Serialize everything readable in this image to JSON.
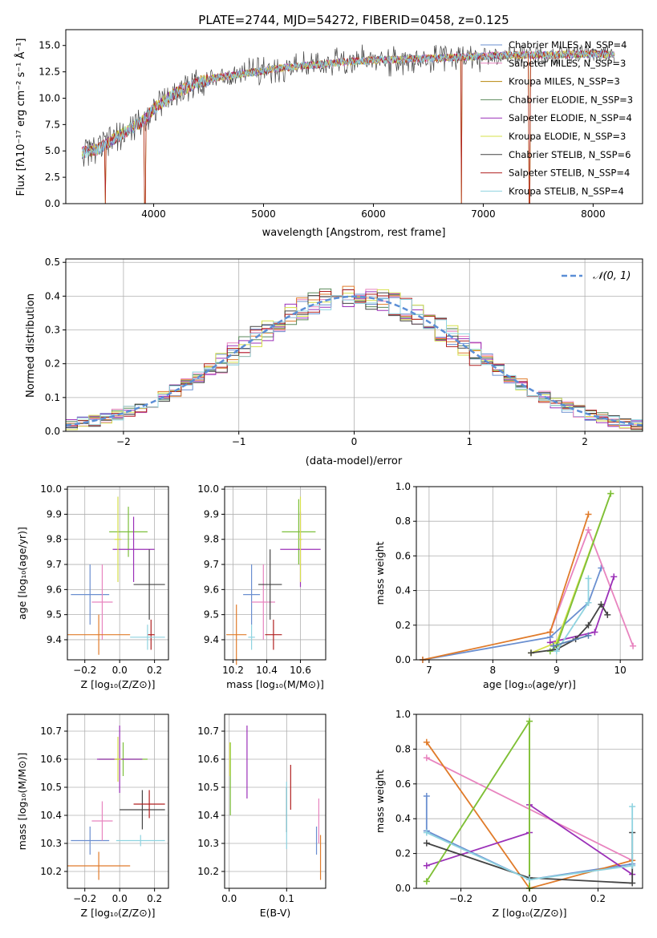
{
  "chart_data": [
    {
      "type": "line",
      "title": "PLATE=2744, MJD=54272, FIBERID=0458, z=0.125",
      "xlabel": "wavelength [Angstrom, rest frame]",
      "ylabel": "Flux [fλ10⁻¹⁷ erg cm⁻² s⁻¹ Å⁻¹]",
      "xlim": [
        3200,
        8450
      ],
      "ylim": [
        0,
        16.5
      ],
      "xticks": [
        4000,
        5000,
        6000,
        7000,
        8000
      ],
      "yticks": [
        0.0,
        2.5,
        5.0,
        7.5,
        10.0,
        12.5,
        15.0
      ],
      "grid": false,
      "legend_position": "top-right",
      "legend": [
        {
          "label": "Chabrier MILES, N_SSP=4",
          "color": "#6a8fd0"
        },
        {
          "label": "Salpeter MILES, N_SSP=3",
          "color": "#e884bf"
        },
        {
          "label": "Kroupa MILES, N_SSP=3",
          "color": "#b8860b"
        },
        {
          "label": "Chabrier ELODIE, N_SSP=3",
          "color": "#5a8a5a"
        },
        {
          "label": "Salpeter ELODIE, N_SSP=4",
          "color": "#9b30b8"
        },
        {
          "label": "Kroupa ELODIE, N_SSP=3",
          "color": "#d6e04a"
        },
        {
          "label": "Chabrier STELIB, N_SSP=6",
          "color": "#444444"
        },
        {
          "label": "Salpeter STELIB, N_SSP=4",
          "color": "#b02020"
        },
        {
          "label": "Kroupa STELIB, N_SSP=4",
          "color": "#8fd3e0"
        }
      ],
      "continuum": {
        "x": [
          3350,
          3500,
          3700,
          3900,
          4000,
          4200,
          4400,
          4600,
          4800,
          5000,
          5200,
          5500,
          5800,
          6000,
          6300,
          6600,
          7000,
          7300,
          7600,
          8000,
          8200
        ],
        "y": [
          4.8,
          5.2,
          6.5,
          7.8,
          9.0,
          10.5,
          11.5,
          12.0,
          12.3,
          12.6,
          12.9,
          13.2,
          13.5,
          13.6,
          13.7,
          13.8,
          14.0,
          14.1,
          14.1,
          14.2,
          14.1
        ]
      },
      "dips": [
        {
          "x": 3560,
          "y": 0.0
        },
        {
          "x": 3920,
          "y": 0.0
        },
        {
          "x": 6800,
          "y": 0.0
        },
        {
          "x": 7420,
          "y": 0.0
        }
      ]
    },
    {
      "type": "step",
      "xlabel": "(data-model)/error",
      "ylabel": "Normed distribution",
      "xlim": [
        -2.5,
        2.5
      ],
      "ylim": [
        0,
        0.51
      ],
      "xticks": [
        -2,
        -1,
        0,
        1,
        2
      ],
      "yticks": [
        0.0,
        0.1,
        0.2,
        0.3,
        0.4,
        0.5
      ],
      "grid": true,
      "legend_position": "top-right",
      "reference_curve": {
        "label": "𝒩(0, 1)",
        "mean": 0,
        "sigma": 1,
        "color": "#5b8ed6"
      },
      "bin_width": 0.1,
      "series_colors": [
        "#6a8fd0",
        "#e884bf",
        "#e07b2a",
        "#5a8a5a",
        "#9b30b8",
        "#d6e04a",
        "#444444",
        "#b02020",
        "#8fd3e0"
      ]
    },
    {
      "type": "errorbar",
      "xlabel": "Z [log₁₀(Z/Z⊙)]",
      "ylabel": "age  [log₁₀(age/yr)]",
      "xlim": [
        -0.3,
        0.28
      ],
      "ylim": [
        9.32,
        10.01
      ],
      "xticks": [
        "−0.2",
        "0.0",
        "0.2"
      ],
      "yticks": [
        "9.4",
        "9.5",
        "9.6",
        "9.7",
        "9.8",
        "9.9",
        "10.0"
      ],
      "grid": true,
      "points": [
        {
          "x": -0.17,
          "y": 9.58,
          "xerr": 0.11,
          "yerr": 0.12,
          "color": "#6a8fd0"
        },
        {
          "x": -0.1,
          "y": 9.55,
          "xerr": 0.06,
          "yerr": 0.15,
          "color": "#e884bf"
        },
        {
          "x": -0.12,
          "y": 9.42,
          "xerr": 0.18,
          "yerr": 0.08,
          "color": "#e07b2a"
        },
        {
          "x": 0.05,
          "y": 9.83,
          "xerr": 0.11,
          "yerr": 0.1,
          "color": "#7cbf3a"
        },
        {
          "x": 0.08,
          "y": 9.76,
          "xerr": 0.12,
          "yerr": 0.13,
          "color": "#9b30b8"
        },
        {
          "x": -0.01,
          "y": 9.8,
          "xerr": 0.02,
          "yerr": 0.17,
          "color": "#d6e04a"
        },
        {
          "x": 0.17,
          "y": 9.62,
          "xerr": 0.09,
          "yerr": 0.14,
          "color": "#444444"
        },
        {
          "x": 0.18,
          "y": 9.42,
          "xerr": 0.02,
          "yerr": 0.06,
          "color": "#b02020"
        },
        {
          "x": 0.16,
          "y": 9.41,
          "xerr": 0.1,
          "yerr": 0.05,
          "color": "#8fd3e0"
        }
      ]
    },
    {
      "type": "errorbar",
      "xlabel": "mass [log₁₀(M/M⊙)]",
      "ylabel": "",
      "xlim": [
        10.15,
        10.75
      ],
      "ylim": [
        9.32,
        10.01
      ],
      "xticks": [
        "10.2",
        "10.4",
        "10.6"
      ],
      "yticks": [
        "9.4",
        "9.5",
        "9.6",
        "9.7",
        "9.8",
        "9.9",
        "10.0"
      ],
      "grid": true,
      "points": [
        {
          "x": 10.31,
          "y": 9.58,
          "xerr": 0.05,
          "yerr": 0.12,
          "color": "#6a8fd0"
        },
        {
          "x": 10.38,
          "y": 9.55,
          "xerr": 0.07,
          "yerr": 0.15,
          "color": "#e884bf"
        },
        {
          "x": 10.22,
          "y": 9.42,
          "xerr": 0.06,
          "yerr": 0.12,
          "color": "#e07b2a"
        },
        {
          "x": 10.59,
          "y": 9.83,
          "xerr": 0.1,
          "yerr": 0.13,
          "color": "#7cbf3a"
        },
        {
          "x": 10.6,
          "y": 9.76,
          "xerr": 0.12,
          "yerr": 0.15,
          "color": "#9b30b8"
        },
        {
          "x": 10.6,
          "y": 9.8,
          "xerr": 0.01,
          "yerr": 0.17,
          "color": "#d6e04a"
        },
        {
          "x": 10.42,
          "y": 9.62,
          "xerr": 0.07,
          "yerr": 0.14,
          "color": "#444444"
        },
        {
          "x": 10.44,
          "y": 9.42,
          "xerr": 0.05,
          "yerr": 0.06,
          "color": "#b02020"
        },
        {
          "x": 10.31,
          "y": 9.41,
          "xerr": 0.02,
          "yerr": 0.05,
          "color": "#8fd3e0"
        }
      ]
    },
    {
      "type": "line",
      "xlabel": "age  [log₁₀(age/yr)]",
      "ylabel": "mass weight",
      "xlim": [
        6.8,
        10.35
      ],
      "ylim": [
        0,
        1.0
      ],
      "xticks": [
        7,
        8,
        9,
        10
      ],
      "yticks": [
        0.0,
        0.2,
        0.4,
        0.6,
        0.8,
        1.0
      ],
      "grid": true,
      "series": [
        {
          "color": "#6a8fd0",
          "x": [
            6.9,
            8.9,
            9.5,
            9.7
          ],
          "y": [
            0.0,
            0.13,
            0.33,
            0.53
          ]
        },
        {
          "color": "#e884bf",
          "x": [
            8.9,
            9.5,
            10.2
          ],
          "y": [
            0.16,
            0.75,
            0.08
          ]
        },
        {
          "color": "#e07b2a",
          "x": [
            6.9,
            8.9,
            9.5
          ],
          "y": [
            0.0,
            0.16,
            0.84
          ]
        },
        {
          "color": "#9b30b8",
          "x": [
            8.9,
            9.6,
            9.9
          ],
          "y": [
            0.1,
            0.16,
            0.48
          ]
        },
        {
          "color": "#d6e04a",
          "x": [
            8.6,
            9.0,
            9.85
          ],
          "y": [
            0.04,
            0.1,
            0.96
          ]
        },
        {
          "color": "#7cbf3a",
          "x": [
            8.9,
            9.0,
            9.85
          ],
          "y": [
            0.05,
            0.08,
            0.96
          ]
        },
        {
          "color": "#444444",
          "x": [
            8.6,
            9.0,
            9.3,
            9.5,
            9.7,
            9.8
          ],
          "y": [
            0.04,
            0.06,
            0.12,
            0.2,
            0.32,
            0.26
          ]
        },
        {
          "color": "#8fd3e0",
          "x": [
            9.0,
            9.5,
            9.5
          ],
          "y": [
            0.05,
            0.33,
            0.47
          ]
        },
        {
          "color": "#5a7fb0",
          "x": [
            8.95,
            9.5
          ],
          "y": [
            0.08,
            0.14
          ]
        }
      ]
    },
    {
      "type": "errorbar",
      "xlabel": "Z [log₁₀(Z/Z⊙)]",
      "ylabel": "mass [log₁₀(M/M⊙)]",
      "xlim": [
        -0.3,
        0.28
      ],
      "ylim": [
        10.14,
        10.76
      ],
      "xticks": [
        "−0.2",
        "0.0",
        "0.2"
      ],
      "yticks": [
        "10.2",
        "10.3",
        "10.4",
        "10.5",
        "10.6",
        "10.7"
      ],
      "grid": true,
      "points": [
        {
          "x": -0.17,
          "y": 10.31,
          "xerr": 0.11,
          "yerr": 0.05,
          "color": "#6a8fd0"
        },
        {
          "x": -0.1,
          "y": 10.38,
          "xerr": 0.06,
          "yerr": 0.07,
          "color": "#e884bf"
        },
        {
          "x": -0.12,
          "y": 10.22,
          "xerr": 0.18,
          "yerr": 0.05,
          "color": "#e07b2a"
        },
        {
          "x": 0.02,
          "y": 10.6,
          "xerr": 0.14,
          "yerr": 0.06,
          "color": "#7cbf3a"
        },
        {
          "x": 0.0,
          "y": 10.6,
          "xerr": 0.13,
          "yerr": 0.12,
          "color": "#9b30b8"
        },
        {
          "x": -0.01,
          "y": 10.6,
          "xerr": 0.02,
          "yerr": 0.08,
          "color": "#d6e04a"
        },
        {
          "x": 0.13,
          "y": 10.42,
          "xerr": 0.13,
          "yerr": 0.07,
          "color": "#444444"
        },
        {
          "x": 0.17,
          "y": 10.44,
          "xerr": 0.09,
          "yerr": 0.05,
          "color": "#b02020"
        },
        {
          "x": 0.12,
          "y": 10.31,
          "xerr": 0.14,
          "yerr": 0.02,
          "color": "#8fd3e0"
        }
      ]
    },
    {
      "type": "errorbar",
      "xlabel": "E(B-V)",
      "ylabel": "",
      "xlim": [
        -0.008,
        0.168
      ],
      "ylim": [
        10.14,
        10.76
      ],
      "xticks": [
        "0.0",
        "0.1"
      ],
      "yticks": [
        "10.2",
        "10.3",
        "10.4",
        "10.5",
        "10.6",
        "10.7"
      ],
      "grid": true,
      "points": [
        {
          "x": 0.152,
          "y": 10.31,
          "xerr": 0,
          "yerr": 0.05,
          "color": "#6a8fd0"
        },
        {
          "x": 0.156,
          "y": 10.38,
          "xerr": 0,
          "yerr": 0.08,
          "color": "#e884bf"
        },
        {
          "x": 0.159,
          "y": 10.25,
          "xerr": 0,
          "yerr": 0.08,
          "color": "#e07b2a"
        },
        {
          "x": 0.002,
          "y": 10.53,
          "xerr": 0,
          "yerr": 0.13,
          "color": "#7cbf3a"
        },
        {
          "x": 0.031,
          "y": 10.59,
          "xerr": 0,
          "yerr": 0.13,
          "color": "#9b30b8"
        },
        {
          "x": 0.001,
          "y": 10.6,
          "xerr": 0,
          "yerr": 0.06,
          "color": "#d6e04a"
        },
        {
          "x": 0.1,
          "y": 10.42,
          "xerr": 0,
          "yerr": 0.08,
          "color": "#444444"
        },
        {
          "x": 0.107,
          "y": 10.5,
          "xerr": 0,
          "yerr": 0.08,
          "color": "#b02020"
        },
        {
          "x": 0.1,
          "y": 10.4,
          "xerr": 0,
          "yerr": 0.12,
          "color": "#8fd3e0"
        }
      ]
    },
    {
      "type": "line",
      "xlabel": "Z [log₁₀(Z/Z⊙)]",
      "ylabel": "mass weight",
      "xlim": [
        -0.33,
        0.33
      ],
      "ylim": [
        0,
        1.0
      ],
      "xticks": [
        "−0.2",
        "0.0",
        "0.2"
      ],
      "yticks": [
        0.0,
        0.2,
        0.4,
        0.6,
        0.8,
        1.0
      ],
      "grid": true,
      "series": [
        {
          "color": "#6a8fd0",
          "x": [
            -0.3,
            -0.3,
            0.0,
            0.3
          ],
          "y": [
            0.53,
            0.33,
            0.05,
            0.14
          ]
        },
        {
          "color": "#e884bf",
          "x": [
            -0.3,
            0.3
          ],
          "y": [
            0.75,
            0.16
          ]
        },
        {
          "color": "#e07b2a",
          "x": [
            -0.3,
            0.0,
            0.3
          ],
          "y": [
            0.84,
            0.0,
            0.16
          ]
        },
        {
          "color": "#9b30b8",
          "x": [
            -0.3,
            0.0,
            0.0,
            0.3
          ],
          "y": [
            0.13,
            0.32,
            0.48,
            0.08
          ]
        },
        {
          "color": "#d6e04a",
          "x": [
            -0.3,
            0.0,
            0.0
          ],
          "y": [
            0.04,
            0.96,
            0.0
          ]
        },
        {
          "color": "#7cbf3a",
          "x": [
            -0.3,
            0.0,
            0.0
          ],
          "y": [
            0.04,
            0.96,
            0.0
          ]
        },
        {
          "color": "#444444",
          "x": [
            -0.3,
            0.0,
            0.3,
            0.3
          ],
          "y": [
            0.26,
            0.06,
            0.03,
            0.32
          ]
        },
        {
          "color": "#8fd3e0",
          "x": [
            -0.3,
            0.0,
            0.3,
            0.3
          ],
          "y": [
            0.32,
            0.05,
            0.13,
            0.47
          ]
        }
      ]
    }
  ]
}
